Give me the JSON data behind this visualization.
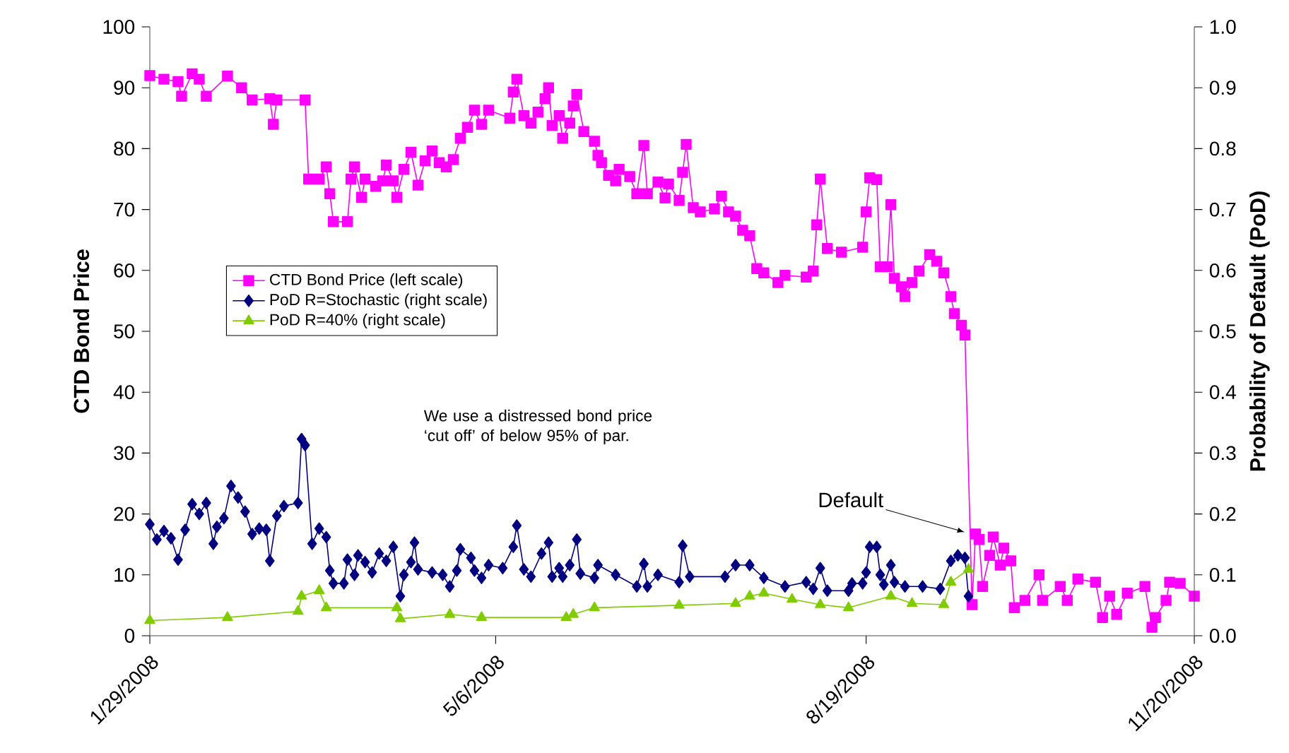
{
  "chart_data": {
    "type": "line",
    "ylabel": "CTD Bond Price",
    "y2label": "Probability of Default (PoD)",
    "xlim": [
      "2008-01-29",
      "2008-11-20"
    ],
    "xticks": [
      {
        "value": "2008-01-29",
        "label": "1/29/2008"
      },
      {
        "value": "2008-05-06",
        "label": "5/6/2008"
      },
      {
        "value": "2008-08-19",
        "label": "8/19/2008"
      },
      {
        "value": "2008-11-20",
        "label": "11/20/2008"
      }
    ],
    "ylim": [
      0,
      100
    ],
    "yticks": [
      0,
      10,
      20,
      30,
      40,
      50,
      60,
      70,
      80,
      90,
      100
    ],
    "y2lim": [
      0,
      1
    ],
    "y2ticks": [
      {
        "value": 0,
        "label": "0.0"
      },
      {
        "value": 0.1,
        "label": "0.1"
      },
      {
        "value": 0.2,
        "label": "0.2"
      },
      {
        "value": 0.3,
        "label": "0.3"
      },
      {
        "value": 0.4,
        "label": "0.4"
      },
      {
        "value": 0.5,
        "label": "0.5"
      },
      {
        "value": 0.6,
        "label": "0.6"
      },
      {
        "value": 0.7,
        "label": "0.7"
      },
      {
        "value": 0.8,
        "label": "0.8"
      },
      {
        "value": 0.9,
        "label": "0.9"
      },
      {
        "value": 1,
        "label": "1.0"
      }
    ],
    "grid": false,
    "legend": "left",
    "line_style": "solid",
    "annotations": [
      "We use a distressed bond price ‘cut off’ of below 95% of par.",
      {
        "text": "Default",
        "x": "2008-09-16",
        "y": 17
      }
    ],
    "series": [
      {
        "name": "CTD Bond Price (left scale)",
        "color": "#ff00ff",
        "marker": "square",
        "axis": "y",
        "x": [
          "2008-01-29",
          "2008-02-02",
          "2008-02-06",
          "2008-02-07",
          "2008-02-10",
          "2008-02-12",
          "2008-02-14",
          "2008-02-20",
          "2008-02-24",
          "2008-02-27",
          "2008-03-03",
          "2008-03-04",
          "2008-03-05",
          "2008-03-13",
          "2008-03-14",
          "2008-03-17",
          "2008-03-19",
          "2008-03-20",
          "2008-03-21",
          "2008-03-25",
          "2008-03-26",
          "2008-03-27",
          "2008-03-29",
          "2008-03-30",
          "2008-04-02",
          "2008-04-04",
          "2008-04-05",
          "2008-04-07",
          "2008-04-08",
          "2008-04-10",
          "2008-04-12",
          "2008-04-14",
          "2008-04-16",
          "2008-04-18",
          "2008-04-20",
          "2008-04-22",
          "2008-04-24",
          "2008-04-26",
          "2008-04-28",
          "2008-04-30",
          "2008-05-02",
          "2008-05-04",
          "2008-05-10",
          "2008-05-11",
          "2008-05-12",
          "2008-05-14",
          "2008-05-16",
          "2008-05-18",
          "2008-05-20",
          "2008-05-21",
          "2008-05-22",
          "2008-05-24",
          "2008-05-25",
          "2008-05-27",
          "2008-05-28",
          "2008-05-29",
          "2008-05-31",
          "2008-06-03",
          "2008-06-04",
          "2008-06-05",
          "2008-06-07",
          "2008-06-09",
          "2008-06-10",
          "2008-06-13",
          "2008-06-15",
          "2008-06-17",
          "2008-06-18",
          "2008-06-21",
          "2008-06-23",
          "2008-06-24",
          "2008-06-27",
          "2008-06-28",
          "2008-06-29",
          "2008-07-01",
          "2008-07-03",
          "2008-07-07",
          "2008-07-09",
          "2008-07-11",
          "2008-07-13",
          "2008-07-15",
          "2008-07-17",
          "2008-07-19",
          "2008-07-21",
          "2008-07-25",
          "2008-07-27",
          "2008-08-02",
          "2008-08-04",
          "2008-08-05",
          "2008-08-06",
          "2008-08-08",
          "2008-08-12",
          "2008-08-18",
          "2008-08-19",
          "2008-08-20",
          "2008-08-22",
          "2008-08-23",
          "2008-08-25",
          "2008-08-26",
          "2008-08-27",
          "2008-08-29",
          "2008-08-30",
          "2008-09-01",
          "2008-09-03",
          "2008-09-06",
          "2008-09-08",
          "2008-09-10",
          "2008-09-12",
          "2008-09-13",
          "2008-09-15",
          "2008-09-16",
          "2008-09-18",
          "2008-09-19",
          "2008-09-20",
          "2008-09-21",
          "2008-09-23",
          "2008-09-24",
          "2008-09-26",
          "2008-09-27",
          "2008-09-29",
          "2008-09-30",
          "2008-10-03",
          "2008-10-07",
          "2008-10-08",
          "2008-10-13",
          "2008-10-15",
          "2008-10-18",
          "2008-10-23",
          "2008-10-25",
          "2008-10-27",
          "2008-10-29",
          "2008-11-01",
          "2008-11-06",
          "2008-11-08",
          "2008-11-09",
          "2008-11-12",
          "2008-11-13",
          "2008-11-16",
          "2008-11-20"
        ],
        "values": [
          92,
          91.4,
          91,
          88.6,
          92.3,
          91.4,
          88.6,
          91.9,
          90,
          88,
          88.2,
          84,
          88,
          88,
          75,
          75,
          77,
          72.6,
          68,
          68,
          75,
          77,
          72,
          75,
          73.8,
          74.7,
          77.3,
          74.7,
          72,
          76.6,
          79.4,
          74,
          78,
          79.6,
          77.7,
          77,
          78.2,
          81.7,
          83.5,
          86.3,
          84,
          86.3,
          85,
          89.3,
          91.4,
          85.4,
          84.2,
          86,
          88.2,
          90,
          83.8,
          85.4,
          81.7,
          84.2,
          87,
          88.9,
          82.8,
          81.2,
          78.9,
          77.7,
          75.6,
          74.7,
          76.6,
          75.4,
          72.6,
          80.5,
          72.6,
          74.5,
          71.9,
          74.2,
          71.5,
          76.1,
          80.7,
          70.3,
          69.6,
          70.1,
          72.2,
          69.6,
          68.9,
          66.6,
          65.7,
          60.3,
          59.6,
          58,
          59.2,
          58.9,
          59.9,
          67.5,
          75,
          63.6,
          63,
          63.8,
          69.6,
          75.2,
          74.9,
          60.6,
          60.6,
          70.8,
          58.7,
          57.3,
          55.7,
          58,
          59.9,
          62.6,
          61.5,
          59.6,
          55.7,
          52.9,
          51,
          49.4,
          5.1,
          16.7,
          15.8,
          8.1,
          13.2,
          16.2,
          11.6,
          14.4,
          12.3,
          4.6,
          5.8,
          10,
          5.8,
          8.1,
          5.8,
          9.3,
          8.8,
          3,
          6.5,
          3.5,
          7,
          8.1,
          1.4,
          3,
          5.8,
          8.8,
          8.6,
          6.5
        ]
      },
      {
        "name": "PoD R=Stochastic (right scale)",
        "color": "#000080",
        "marker": "diamond",
        "axis": "y2",
        "x": [
          "2008-01-29",
          "2008-01-31",
          "2008-02-02",
          "2008-02-04",
          "2008-02-06",
          "2008-02-08",
          "2008-02-10",
          "2008-02-12",
          "2008-02-14",
          "2008-02-16",
          "2008-02-17",
          "2008-02-19",
          "2008-02-21",
          "2008-02-23",
          "2008-02-25",
          "2008-02-27",
          "2008-02-29",
          "2008-03-02",
          "2008-03-03",
          "2008-03-05",
          "2008-03-07",
          "2008-03-11",
          "2008-03-12",
          "2008-03-13",
          "2008-03-15",
          "2008-03-17",
          "2008-03-19",
          "2008-03-20",
          "2008-03-21",
          "2008-03-24",
          "2008-03-25",
          "2008-03-27",
          "2008-03-28",
          "2008-03-30",
          "2008-04-01",
          "2008-04-03",
          "2008-04-05",
          "2008-04-07",
          "2008-04-09",
          "2008-04-10",
          "2008-04-12",
          "2008-04-13",
          "2008-04-14",
          "2008-04-18",
          "2008-04-21",
          "2008-04-23",
          "2008-04-25",
          "2008-04-26",
          "2008-04-29",
          "2008-04-30",
          "2008-05-02",
          "2008-05-04",
          "2008-05-08",
          "2008-05-11",
          "2008-05-12",
          "2008-05-14",
          "2008-05-16",
          "2008-05-19",
          "2008-05-21",
          "2008-05-22",
          "2008-05-24",
          "2008-05-25",
          "2008-05-27",
          "2008-05-29",
          "2008-05-30",
          "2008-06-03",
          "2008-06-04",
          "2008-06-09",
          "2008-06-15",
          "2008-06-17",
          "2008-06-18",
          "2008-06-21",
          "2008-06-27",
          "2008-06-28",
          "2008-06-30",
          "2008-07-10",
          "2008-07-13",
          "2008-07-17",
          "2008-07-21",
          "2008-07-27",
          "2008-08-02",
          "2008-08-04",
          "2008-08-06",
          "2008-08-08",
          "2008-08-14",
          "2008-08-15",
          "2008-08-18",
          "2008-08-19",
          "2008-08-20",
          "2008-08-22",
          "2008-08-23",
          "2008-08-24",
          "2008-08-26",
          "2008-08-27",
          "2008-08-30",
          "2008-09-04",
          "2008-09-09",
          "2008-09-12",
          "2008-09-14",
          "2008-09-16",
          "2008-09-17"
        ],
        "values": [
          0.183,
          0.158,
          0.172,
          0.16,
          0.125,
          0.174,
          0.216,
          0.2,
          0.218,
          0.151,
          0.179,
          0.193,
          0.246,
          0.227,
          0.204,
          0.167,
          0.176,
          0.174,
          0.123,
          0.197,
          0.213,
          0.218,
          0.323,
          0.313,
          0.151,
          0.176,
          0.162,
          0.107,
          0.086,
          0.086,
          0.125,
          0.1,
          0.132,
          0.121,
          0.104,
          0.135,
          0.123,
          0.146,
          0.065,
          0.1,
          0.121,
          0.153,
          0.109,
          0.104,
          0.1,
          0.081,
          0.107,
          0.142,
          0.128,
          0.107,
          0.095,
          0.116,
          0.111,
          0.146,
          0.181,
          0.109,
          0.097,
          0.135,
          0.153,
          0.097,
          0.111,
          0.097,
          0.116,
          0.158,
          0.102,
          0.095,
          0.116,
          0.1,
          0.081,
          0.118,
          0.081,
          0.1,
          0.088,
          0.148,
          0.097,
          0.097,
          0.116,
          0.116,
          0.095,
          0.081,
          0.088,
          0.077,
          0.111,
          0.074,
          0.074,
          0.086,
          0.086,
          0.104,
          0.146,
          0.146,
          0.1,
          0.084,
          0.116,
          0.088,
          0.081,
          0.081,
          0.077,
          0.123,
          0.132,
          0.128,
          0.065
        ]
      },
      {
        "name": "PoD R=40% (right scale)",
        "color": "#80cc00",
        "marker": "triangle",
        "axis": "y2",
        "x": [
          "2008-01-29",
          "2008-02-20",
          "2008-03-11",
          "2008-03-12",
          "2008-03-17",
          "2008-03-19",
          "2008-04-08",
          "2008-04-09",
          "2008-04-23",
          "2008-05-02",
          "2008-05-26",
          "2008-05-28",
          "2008-06-03",
          "2008-06-27",
          "2008-07-13",
          "2008-07-17",
          "2008-07-21",
          "2008-07-29",
          "2008-08-06",
          "2008-08-14",
          "2008-08-26",
          "2008-09-01",
          "2008-09-10",
          "2008-09-12",
          "2008-09-17"
        ],
        "values": [
          0.025,
          0.03,
          0.04,
          0.065,
          0.074,
          0.046,
          0.046,
          0.028,
          0.035,
          0.03,
          0.03,
          0.035,
          0.046,
          0.05,
          0.053,
          0.065,
          0.07,
          0.06,
          0.051,
          0.046,
          0.065,
          0.053,
          0.051,
          0.088,
          0.109
        ]
      }
    ]
  }
}
